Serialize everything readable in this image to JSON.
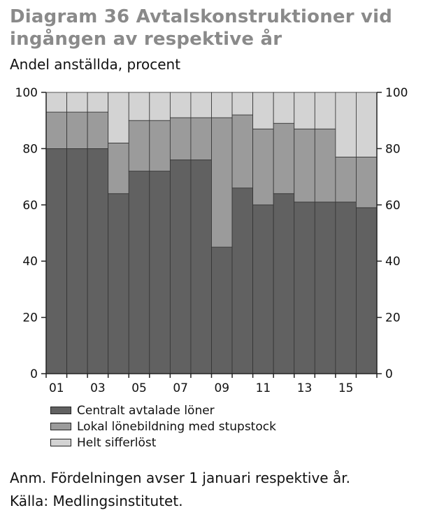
{
  "header": {
    "title": "Diagram 36 Avtalskonstruktioner vid ingången av respektive år",
    "subtitle": "Andel anställda, procent"
  },
  "notes": {
    "anm": "Anm. Fördelningen avser 1 januari respektive år.",
    "source": "Källa: Medlingsinstitutet."
  },
  "colors": {
    "central": "#616161",
    "local": "#9b9b9b",
    "free": "#d3d3d3",
    "axis": "#222222"
  },
  "chart_data": {
    "type": "bar",
    "stacked": true,
    "categories": [
      "01",
      "02",
      "03",
      "04",
      "05",
      "06",
      "07",
      "08",
      "09",
      "10",
      "11",
      "12",
      "13",
      "14",
      "15",
      "16"
    ],
    "x_tick_labels": [
      "01",
      "03",
      "05",
      "07",
      "09",
      "11",
      "13",
      "15"
    ],
    "series": [
      {
        "name": "Centralt avtalade löner",
        "values": [
          80,
          80,
          80,
          64,
          72,
          72,
          76,
          76,
          45,
          66,
          60,
          64,
          61,
          61,
          61,
          59
        ]
      },
      {
        "name": "Lokal lönebildning med stupstock",
        "values": [
          13,
          13,
          13,
          18,
          18,
          18,
          15,
          15,
          46,
          26,
          27,
          25,
          26,
          26,
          16,
          18
        ]
      },
      {
        "name": "Helt sifferlöst",
        "values": [
          7,
          7,
          7,
          18,
          10,
          10,
          9,
          9,
          9,
          8,
          13,
          11,
          13,
          13,
          23,
          23
        ]
      }
    ],
    "ylim": [
      0,
      100
    ],
    "yticks": [
      0,
      20,
      40,
      60,
      80,
      100
    ],
    "y_axis_both_sides": true,
    "legend_position": "bottom-left",
    "grid": false
  }
}
